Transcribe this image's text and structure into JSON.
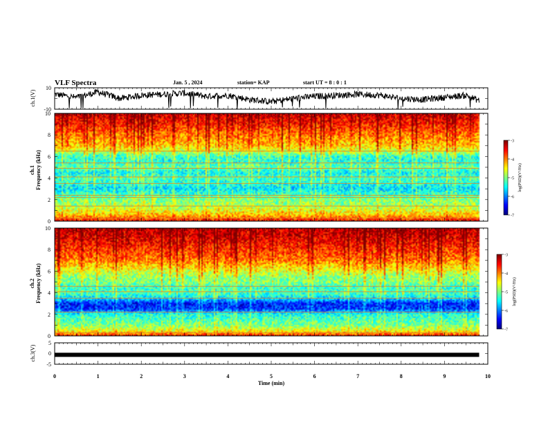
{
  "header": {
    "title": "VLF Spectra",
    "date": "Jan. 5 , 2024",
    "station": "station= KAP",
    "start": "start UT =  8 : 0  : 1"
  },
  "chart_data": [
    {
      "type": "line",
      "name": "waveform-ch1",
      "ylabel": "ch.1(V)",
      "ylim": [
        -10,
        10
      ],
      "yticks": [
        "10",
        "-10"
      ],
      "xlim": [
        0,
        10
      ],
      "x": [
        0.0,
        0.5,
        1.0,
        1.5,
        2.0,
        2.5,
        3.0,
        3.5,
        4.0,
        4.5,
        5.0,
        5.5,
        6.0,
        6.5,
        7.0,
        7.5,
        8.0,
        8.5,
        9.0,
        9.5,
        9.8
      ],
      "y": [
        4,
        1,
        6,
        0,
        3,
        4,
        5,
        2,
        3,
        -1,
        -3,
        0,
        2,
        3,
        4,
        3,
        0,
        -1,
        1,
        3,
        -2
      ]
    },
    {
      "type": "heatmap",
      "name": "spectrogram-ch1",
      "ylabel": "ch.1\nFrequency (kHz)",
      "ylim": [
        0,
        10
      ],
      "yticks": [
        "0",
        "2",
        "4",
        "6",
        "8",
        "10"
      ],
      "xlim": [
        0,
        9.8
      ],
      "colorbar": {
        "label": "log(PSD)(V²/Hz)",
        "range": [
          -7,
          -3
        ],
        "ticks": [
          "-3",
          "-4",
          "-5",
          "-6",
          "-7"
        ]
      },
      "profile": [
        {
          "f": 0.0,
          "v": -3.5
        },
        {
          "f": 0.5,
          "v": -4.2
        },
        {
          "f": 1.0,
          "v": -4.6
        },
        {
          "f": 1.5,
          "v": -4.9
        },
        {
          "f": 2.0,
          "v": -5.0
        },
        {
          "f": 2.5,
          "v": -5.3
        },
        {
          "f": 3.0,
          "v": -5.6
        },
        {
          "f": 3.5,
          "v": -5.4
        },
        {
          "f": 4.0,
          "v": -5.2
        },
        {
          "f": 4.5,
          "v": -5.5
        },
        {
          "f": 5.0,
          "v": -5.1
        },
        {
          "f": 5.5,
          "v": -5.4
        },
        {
          "f": 6.0,
          "v": -5.3
        },
        {
          "f": 6.5,
          "v": -4.7
        },
        {
          "f": 7.0,
          "v": -4.3
        },
        {
          "f": 8.0,
          "v": -4.0
        },
        {
          "f": 9.0,
          "v": -3.6
        },
        {
          "f": 10.0,
          "v": -3.3
        }
      ],
      "lines_khz": [
        0.3,
        1.4,
        2.2,
        2.4,
        3.5,
        4.1,
        4.9,
        5.4,
        6.5
      ]
    },
    {
      "type": "heatmap",
      "name": "spectrogram-ch2",
      "ylabel": "ch.2\nFrequency (kHz)",
      "ylim": [
        0,
        10
      ],
      "yticks": [
        "0",
        "2",
        "4",
        "6",
        "8",
        "10"
      ],
      "xlim": [
        0,
        9.8
      ],
      "colorbar": {
        "label": "log(PSD)(V²/Hz)",
        "range": [
          -7,
          -3
        ],
        "ticks": [
          "-3",
          "-4",
          "-5",
          "-6",
          "-7"
        ]
      },
      "profile": [
        {
          "f": 0.0,
          "v": -3.6
        },
        {
          "f": 0.5,
          "v": -4.6
        },
        {
          "f": 1.0,
          "v": -5.0
        },
        {
          "f": 1.5,
          "v": -5.2
        },
        {
          "f": 2.0,
          "v": -5.4
        },
        {
          "f": 2.5,
          "v": -6.3
        },
        {
          "f": 3.0,
          "v": -6.4
        },
        {
          "f": 3.5,
          "v": -5.6
        },
        {
          "f": 4.0,
          "v": -5.2
        },
        {
          "f": 4.5,
          "v": -5.3
        },
        {
          "f": 5.0,
          "v": -5.0
        },
        {
          "f": 5.5,
          "v": -4.9
        },
        {
          "f": 6.0,
          "v": -4.6
        },
        {
          "f": 6.5,
          "v": -4.3
        },
        {
          "f": 7.0,
          "v": -4.0
        },
        {
          "f": 8.0,
          "v": -3.7
        },
        {
          "f": 9.0,
          "v": -3.4
        },
        {
          "f": 10.0,
          "v": -3.2
        }
      ],
      "lines_khz": [
        0.3,
        2.2,
        3.5,
        4.1,
        4.6
      ]
    },
    {
      "type": "line",
      "name": "waveform-ch3",
      "ylabel": "ch.3(V)",
      "ylim": [
        -5,
        5
      ],
      "yticks": [
        "5",
        "0",
        "-5"
      ],
      "xlim": [
        0,
        10
      ],
      "x": [
        0.0,
        9.8
      ],
      "y": [
        -0.6,
        -0.6
      ],
      "xlabel": "Time (min)",
      "xticks": [
        "0",
        "1",
        "2",
        "3",
        "4",
        "5",
        "6",
        "7",
        "8",
        "9",
        "10"
      ]
    }
  ]
}
